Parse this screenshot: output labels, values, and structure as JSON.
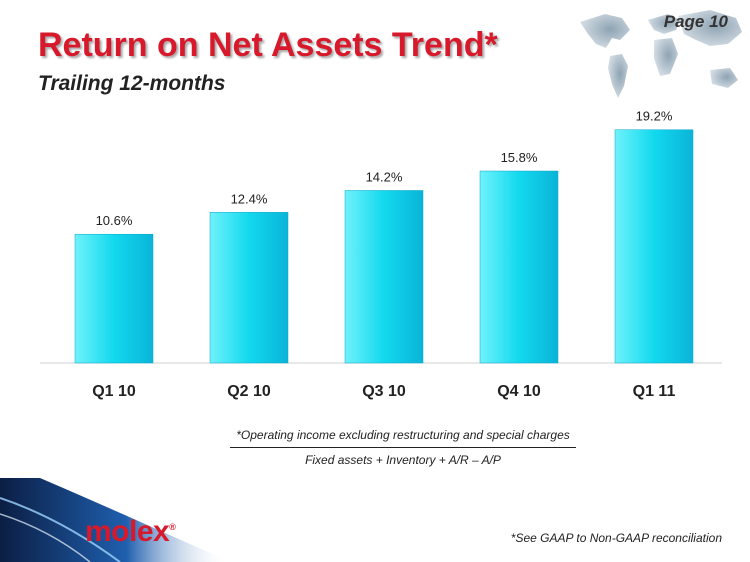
{
  "header": {
    "page": "Page 10",
    "title": "Return on Net Assets Trend*",
    "subtitle": "Trailing 12-months"
  },
  "colors": {
    "title": "#d7192b",
    "bar_top": "#6ff2fb",
    "bar_mid": "#12d9ee",
    "bar_bottom": "#0ab4d8"
  },
  "chart_data": {
    "type": "bar",
    "categories": [
      "Q1 10",
      "Q2 10",
      "Q3 10",
      "Q4 10",
      "Q1 11"
    ],
    "values": [
      10.6,
      12.4,
      14.2,
      15.8,
      19.2
    ],
    "value_labels": [
      "10.6%",
      "12.4%",
      "14.2%",
      "15.8%",
      "19.2%"
    ],
    "title": "",
    "xlabel": "",
    "ylabel": "",
    "ylim": [
      0,
      20
    ],
    "grid": false,
    "legend": "none"
  },
  "formula": {
    "numerator": "*Operating income excluding restructuring and special charges",
    "denominator": "Fixed assets + Inventory + A/R – A/P"
  },
  "footer": {
    "logo_text": "molex",
    "logo_mark": "®",
    "footnote": "*See GAAP to Non-GAAP reconciliation"
  }
}
